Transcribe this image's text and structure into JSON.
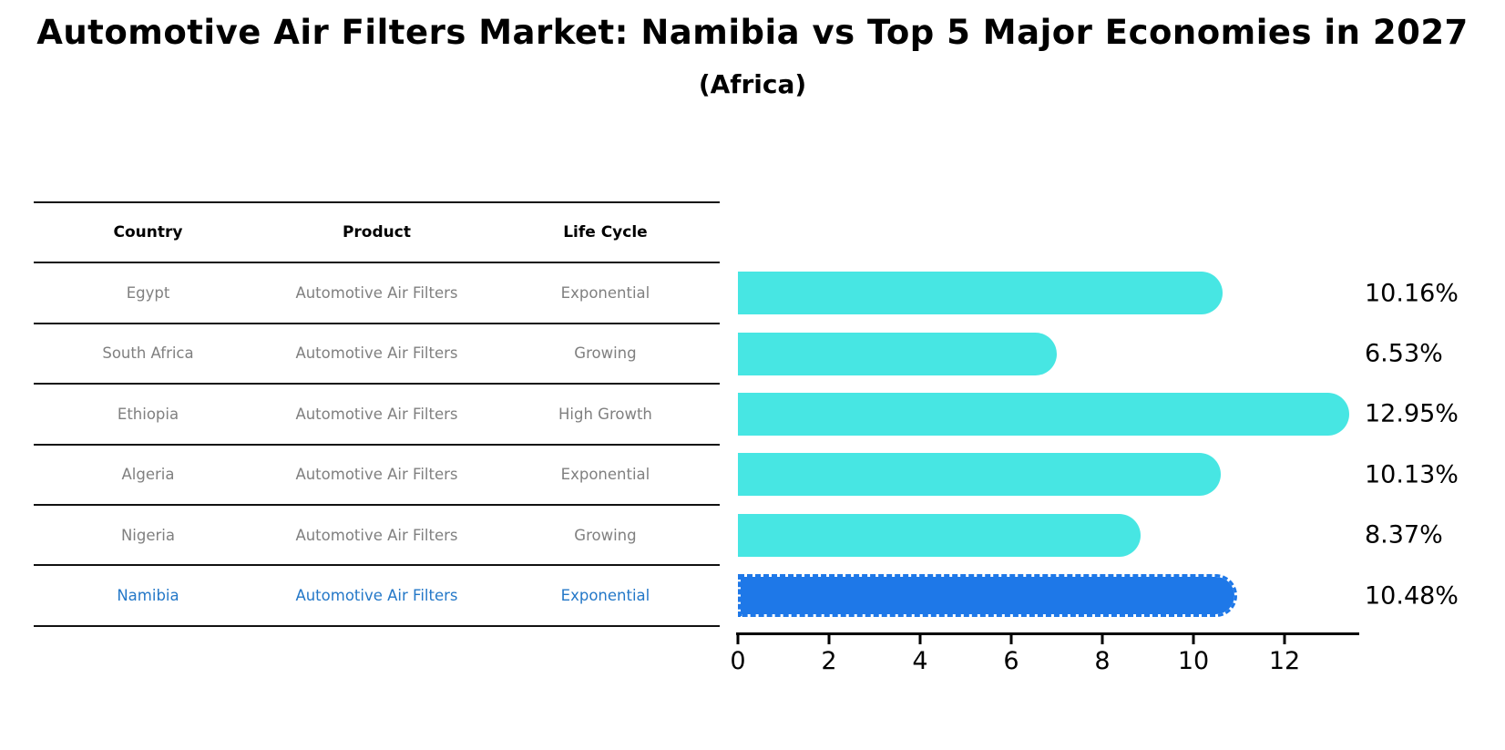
{
  "title": "Automotive Air Filters Market: Namibia vs Top 5 Major Economies in 2027",
  "subtitle": "(Africa)",
  "table": {
    "headers": [
      "Country",
      "Product",
      "Life Cycle"
    ],
    "rows": [
      {
        "country": "Egypt",
        "product": "Automotive Air Filters",
        "life_cycle": "Exponential",
        "highlight": false
      },
      {
        "country": "South Africa",
        "product": "Automotive Air Filters",
        "life_cycle": "Growing",
        "highlight": false
      },
      {
        "country": "Ethiopia",
        "product": "Automotive Air Filters",
        "life_cycle": "High Growth",
        "highlight": false
      },
      {
        "country": "Algeria",
        "product": "Automotive Air Filters",
        "life_cycle": "Exponential",
        "highlight": false
      },
      {
        "country": "Nigeria",
        "product": "Automotive Air Filters",
        "life_cycle": "Growing",
        "highlight": false
      },
      {
        "country": "Namibia",
        "product": "Automotive Air Filters",
        "life_cycle": "Exponential",
        "highlight": true
      }
    ]
  },
  "chart_data": {
    "type": "bar",
    "orientation": "horizontal",
    "categories": [
      "Egypt",
      "South Africa",
      "Ethiopia",
      "Algeria",
      "Nigeria",
      "Namibia"
    ],
    "values": [
      10.16,
      6.53,
      12.95,
      10.13,
      8.37,
      10.48
    ],
    "labels": [
      "10.16%",
      "6.53%",
      "12.95%",
      "10.13%",
      "8.37%",
      "10.48%"
    ],
    "highlight_index": 5,
    "xlim": [
      0,
      13.6
    ],
    "xticks": [
      0,
      2,
      4,
      6,
      8,
      10,
      12
    ],
    "grid": false,
    "legend": false,
    "colors": {
      "default": "#47e6e3",
      "highlight": "#1e78e8"
    }
  }
}
